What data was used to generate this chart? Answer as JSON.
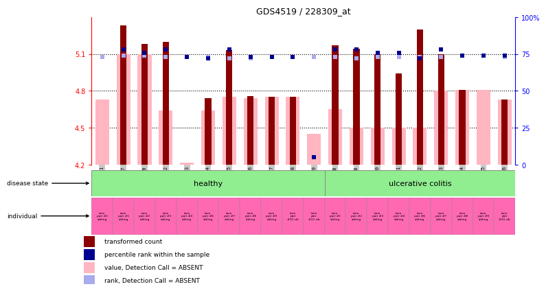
{
  "title": "GDS4519 / 228309_at",
  "samples": [
    "GSM560961",
    "GSM1012177",
    "GSM1012179",
    "GSM560962",
    "GSM560963",
    "GSM560964",
    "GSM560965",
    "GSM560966",
    "GSM560967",
    "GSM560968",
    "GSM560969",
    "GSM1012178",
    "GSM1012180",
    "GSM560970",
    "GSM560971",
    "GSM560972",
    "GSM560973",
    "GSM560974",
    "GSM560975",
    "GSM560976"
  ],
  "red_values": [
    4.73,
    5.33,
    5.18,
    5.2,
    4.21,
    4.74,
    5.13,
    4.76,
    4.75,
    4.75,
    4.21,
    5.17,
    5.14,
    5.1,
    4.94,
    5.3,
    5.1,
    4.81,
    4.22,
    4.73
  ],
  "pink_values": [
    4.73,
    5.1,
    5.1,
    4.64,
    4.22,
    4.64,
    4.75,
    4.74,
    4.75,
    4.75,
    4.45,
    4.65,
    4.5,
    4.5,
    4.5,
    4.5,
    4.8,
    4.81,
    4.81,
    4.73
  ],
  "blue_values": [
    75,
    78,
    76,
    78,
    73,
    72,
    78,
    73,
    73,
    73,
    5,
    78,
    78,
    76,
    76,
    72,
    78,
    74,
    74,
    74
  ],
  "lavender_values": [
    73,
    74,
    74,
    73,
    73,
    73,
    72,
    72,
    73,
    73,
    73,
    73,
    72,
    73,
    73,
    73,
    73,
    74,
    74,
    73
  ],
  "absent_red": [
    true,
    false,
    false,
    false,
    true,
    false,
    false,
    false,
    false,
    false,
    true,
    false,
    false,
    false,
    false,
    false,
    false,
    false,
    true,
    false
  ],
  "absent_blue": [
    true,
    false,
    false,
    false,
    false,
    false,
    false,
    false,
    false,
    false,
    false,
    false,
    false,
    false,
    false,
    false,
    false,
    false,
    false,
    false
  ],
  "healthy_count": 11,
  "disease_labels": [
    "healthy",
    "ulcerative colitis"
  ],
  "individual_labels": [
    "twin\npair #1\nsibling",
    "twin\npair #1\nsibling",
    "twin\npair #2\nsibling",
    "twin\npair #3\nsibling",
    "twin\npair #4\nsibling",
    "twin\npair #6\nsibling",
    "twin\npair #7\nsibling",
    "twin\npair #8\nsibling",
    "twin\npair #9\nsibling",
    "twin\npair\n#10 sib",
    "twin\npair\n#12 sib",
    "twin\npair #1\nsibling",
    "twin\npair #2\nsibling",
    "twin\npair #3\nsibling",
    "twin\npair #4\nsibling",
    "twin\npair #6\nsibling",
    "twin\npair #7\nsibling",
    "twin\npair #8\nsibling",
    "twin\npair #9\nsibling",
    "twin\npair\n#10 sib"
  ],
  "ylim_left": [
    4.2,
    5.4
  ],
  "ylim_right": [
    0,
    100
  ],
  "yticks_left": [
    4.2,
    4.5,
    4.8,
    5.1
  ],
  "yticks_right": [
    0,
    25,
    50,
    75,
    100
  ],
  "hlines": [
    4.5,
    4.8,
    5.1
  ],
  "color_dark_red": "#8B0000",
  "color_pink": "#FFB6C1",
  "color_dark_blue": "#000090",
  "color_lavender": "#AAAAEE",
  "color_healthy": "#90EE90",
  "color_individual": "#FF69B4",
  "color_sample_bg": "#C8C8C8",
  "legend_items": [
    [
      "#8B0000",
      "transformed count"
    ],
    [
      "#000090",
      "percentile rank within the sample"
    ],
    [
      "#FFB6C1",
      "value, Detection Call = ABSENT"
    ],
    [
      "#AAAAEE",
      "rank, Detection Call = ABSENT"
    ]
  ]
}
